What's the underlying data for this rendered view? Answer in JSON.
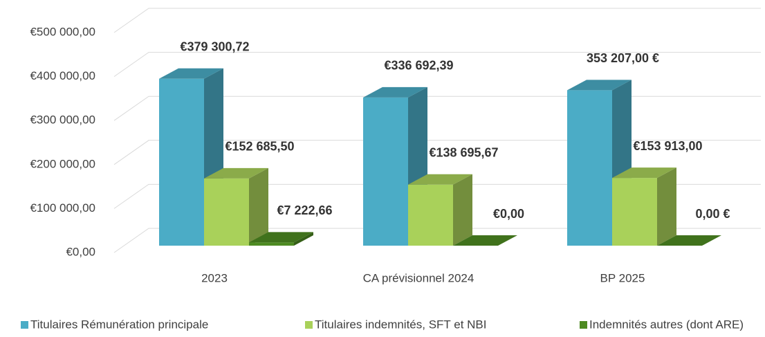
{
  "chart_data": {
    "type": "bar3d",
    "categories": [
      "2023",
      "CA prévisionnel 2024",
      "BP 2025"
    ],
    "series": [
      {
        "name": "Titulaires Rémunération principale",
        "color": "#4bacc6",
        "values": [
          379300.72,
          336692.39,
          353207.0
        ],
        "value_labels": [
          "€379 300,72",
          "€336 692,39",
          "353 207,00 €"
        ]
      },
      {
        "name": "Titulaires indemnités, SFT et NBI",
        "color": "#a9d15a",
        "values": [
          152685.5,
          138695.67,
          153913.0
        ],
        "value_labels": [
          "€152 685,50",
          "€138 695,67",
          "€153 913,00"
        ]
      },
      {
        "name": "Indemnités autres (dont ARE)",
        "color": "#4e8b22",
        "values": [
          7222.66,
          0,
          0
        ],
        "value_labels": [
          "€7 222,66",
          "€0,00",
          "0,00 €"
        ]
      }
    ],
    "ylim": [
      0,
      500000
    ],
    "yticks": [
      {
        "value": 0,
        "label": "€0,00"
      },
      {
        "value": 100000,
        "label": "€100 000,00"
      },
      {
        "value": 200000,
        "label": "€200 000,00"
      },
      {
        "value": 300000,
        "label": "€300 000,00"
      },
      {
        "value": 400000,
        "label": "€400 000,00"
      },
      {
        "value": 500000,
        "label": "€500 000,00"
      }
    ],
    "grid": true,
    "legend": "bottom"
  }
}
